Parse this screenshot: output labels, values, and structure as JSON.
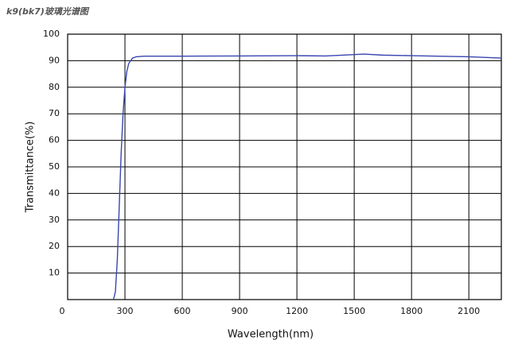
{
  "chart_data": {
    "type": "line",
    "title": "k9(bk7)玻璃光谱图",
    "x_label": "Wavelength(nm)",
    "y_label": "Transmittance(%)",
    "x": [
      240,
      250,
      260,
      270,
      280,
      290,
      300,
      310,
      320,
      340,
      360,
      400,
      600,
      900,
      1200,
      1350,
      1500,
      1550,
      1650,
      1800,
      2100,
      2270
    ],
    "series": [
      {
        "color": "#3846b0",
        "values": [
          0,
          3,
          15,
          35,
          55,
          70,
          80,
          86,
          89,
          91,
          91.5,
          91.7,
          91.7,
          91.8,
          91.9,
          91.8,
          92.3,
          92.5,
          92.1,
          91.9,
          91.5,
          91.0
        ]
      }
    ],
    "xlim": [
      0,
      2270
    ],
    "xticks": [
      0,
      300,
      600,
      900,
      1200,
      1500,
      1800,
      2100
    ],
    "ylim": [
      0,
      100
    ],
    "yticks": [
      10,
      20,
      30,
      40,
      50,
      60,
      70,
      80,
      90,
      100
    ],
    "grid": true
  }
}
